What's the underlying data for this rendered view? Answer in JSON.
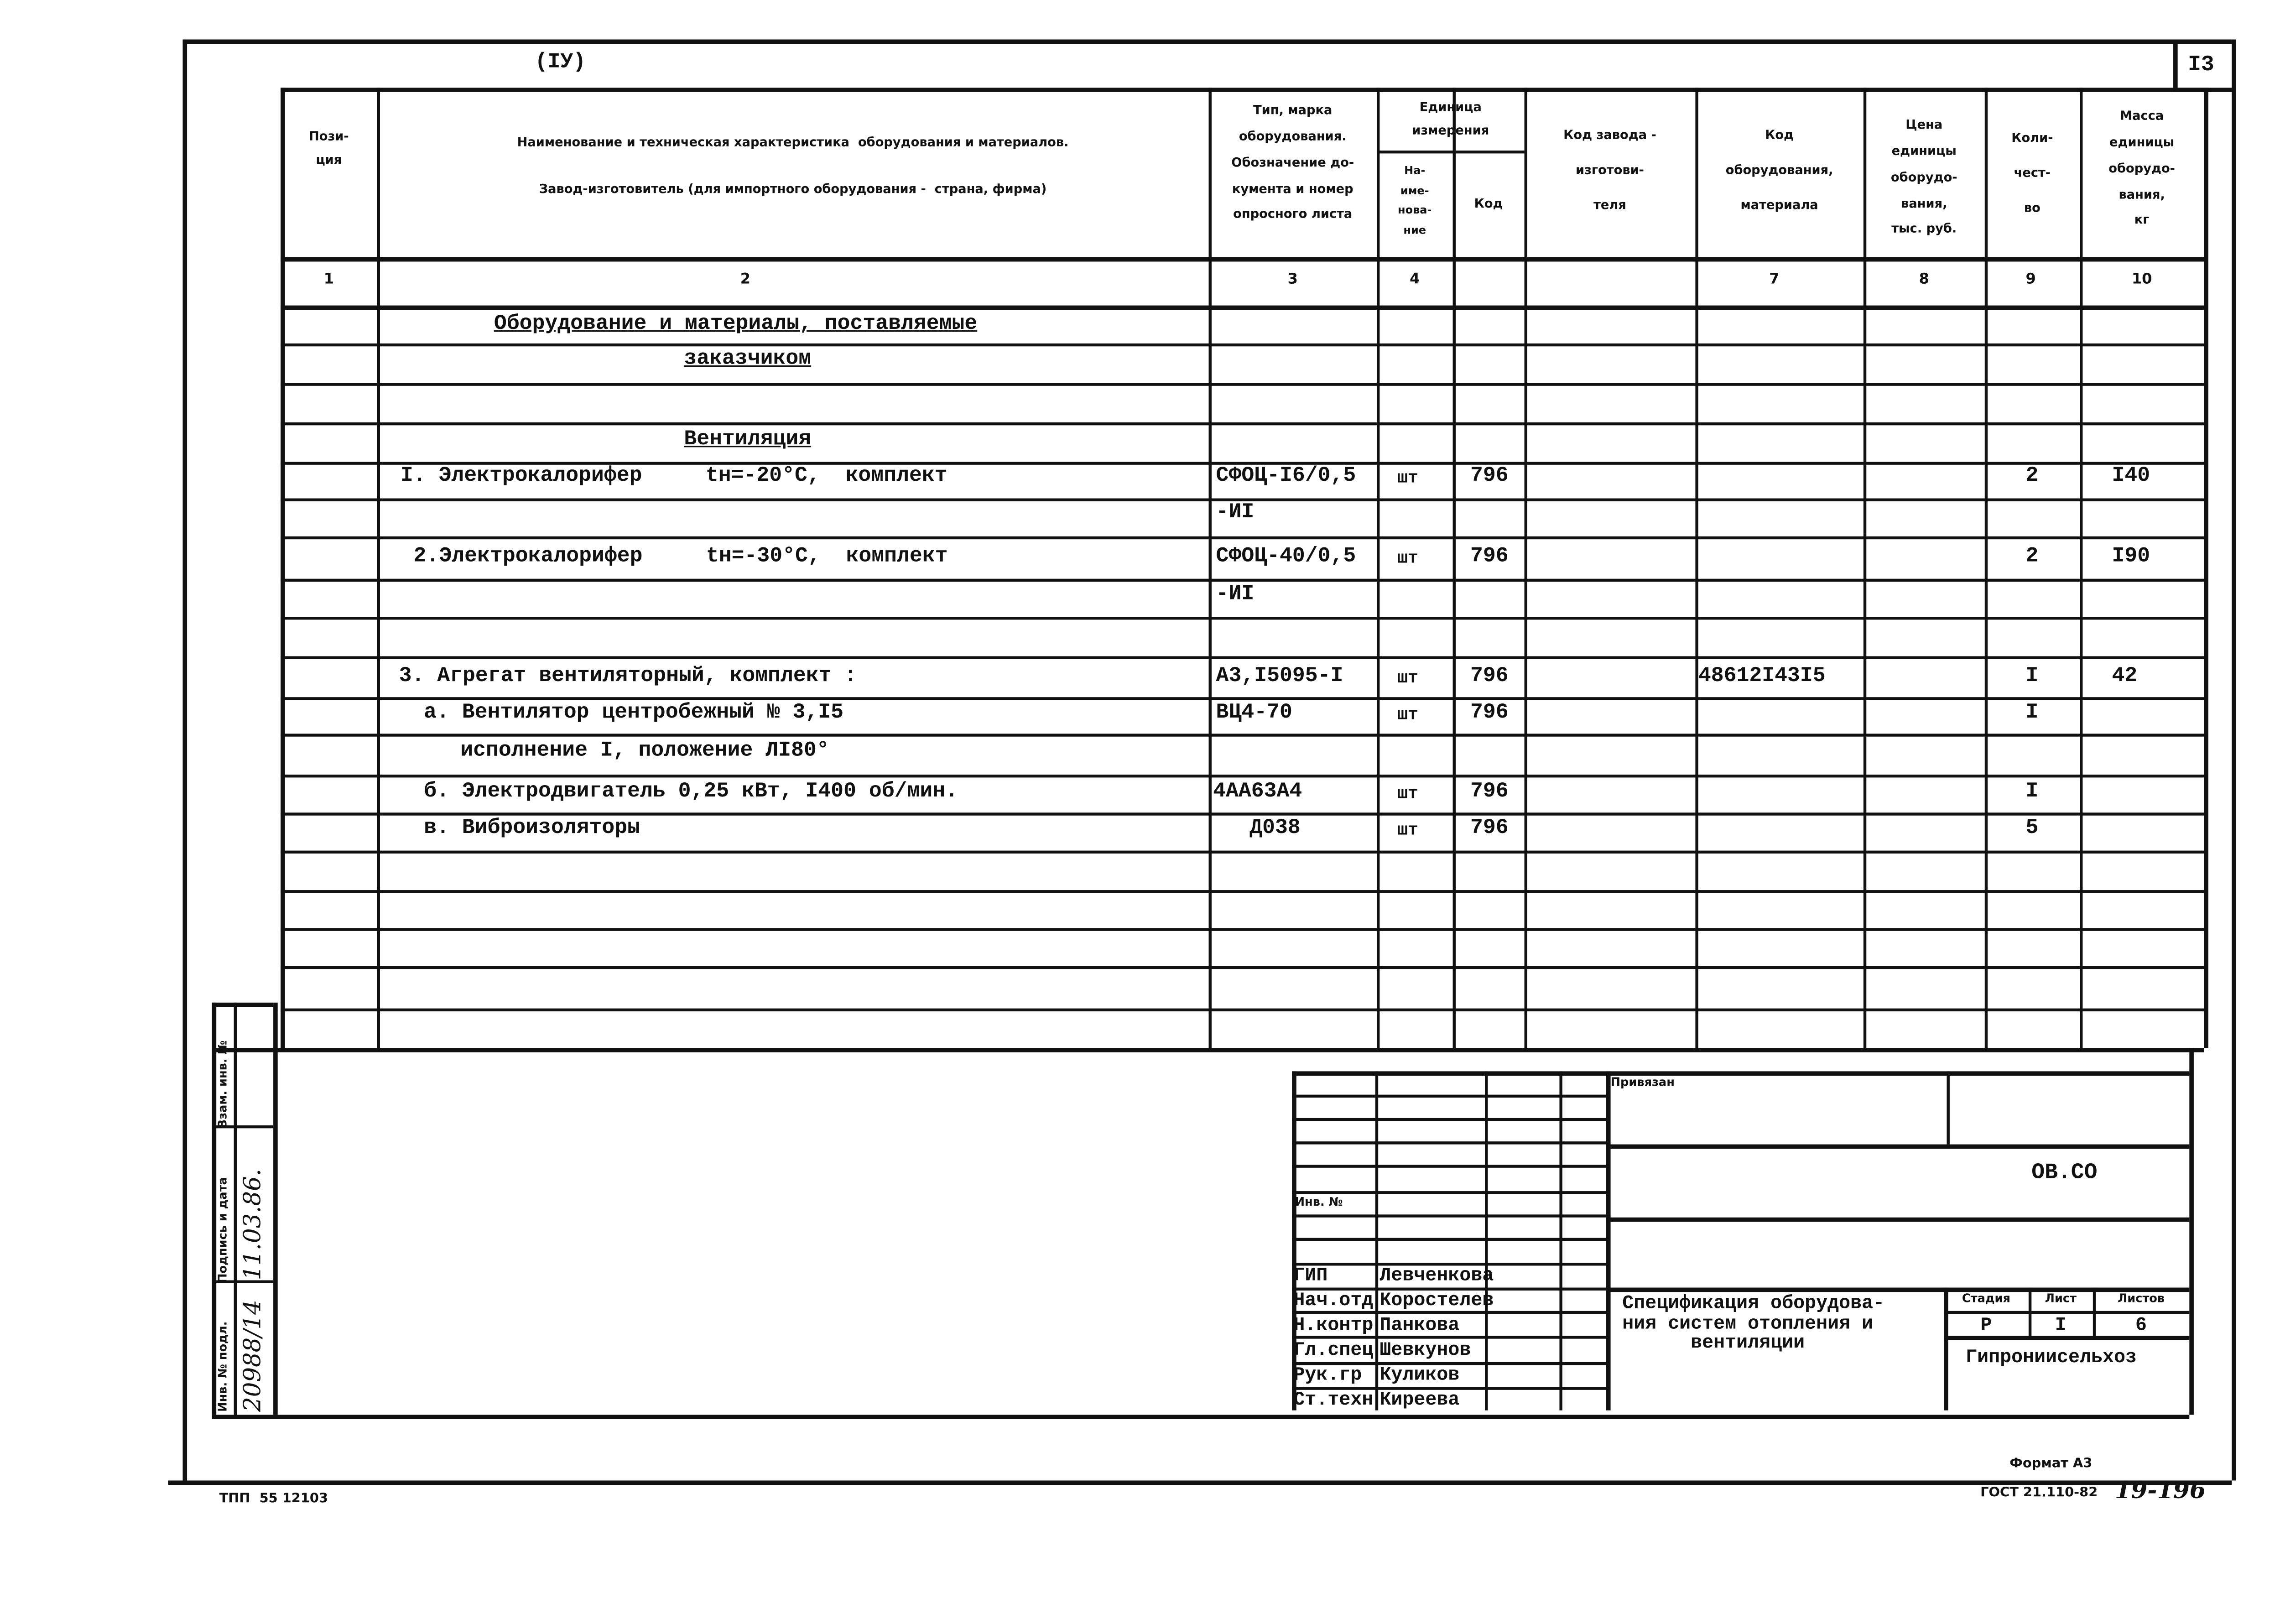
{
  "header": {
    "corner_label": "(IУ)",
    "sheet_number": "I3"
  },
  "columns": {
    "position": "Пози-\nция",
    "name": "Наименование и техническая характеристика  оборудования и материалов.\n\nЗавод-изготовитель (для импортного оборудования -  страна, фирма)",
    "type": "Тип, марка\nоборудования.\nОбозначение до-\nкумента и номер\nопросного листа",
    "unit": "Единица\nизмерения",
    "unit_name": "На-\nиме-\nнова-\nние",
    "unit_code": "Код",
    "manufacturer_code": "Код завода -\nизготови-\nтеля",
    "equipment_code": "Код\nоборудования,\nматериала",
    "price": "Цена\nединицы\nоборудо-\nвания,\nтыс. руб.",
    "qty": "Коли-\nчест-\nво",
    "mass": "Масса\nединицы\nоборудо-\nвания,\nкг"
  },
  "column_numbers": [
    "1",
    "2",
    "3",
    "4",
    "7",
    "8",
    "9",
    "10"
  ],
  "sections": {
    "supplied_line1": "Оборудование и материалы, поставляемые",
    "supplied_line2": "заказчиком",
    "ventilation": "Вентиляция"
  },
  "rows": [
    {
      "name": "I. Электрокалорифер     tн=-20°С,  комплект",
      "type": "СФОЦ-I6/0,5",
      "unit": "шт",
      "code": "796",
      "qty": "2",
      "mass": "I40"
    },
    {
      "name": "",
      "type": "-ИI"
    },
    {
      "name": "2.Электрокалорифер     tн=-30°С,  комплект",
      "type": "СФОЦ-40/0,5",
      "unit": "шт",
      "code": "796",
      "qty": "2",
      "mass": "I90"
    },
    {
      "name": "",
      "type": "-ИI"
    },
    {
      "name": "3. Агрегат вентиляторный, комплект :",
      "type": "А3,I5095-I",
      "unit": "шт",
      "code": "796",
      "equipment_code": "48612I43I5",
      "qty": "I",
      "mass": "42"
    },
    {
      "name": "а. Вентилятор центробежный № 3,I5",
      "type": "ВЦ4-70",
      "unit": "шт",
      "code": "796",
      "qty": "I"
    },
    {
      "name": "исполнение I, положение ЛI80°"
    },
    {
      "name": "б. Электродвигатель 0,25 кВт, I400 об/мин.",
      "type": "4АА63А4",
      "unit": "шт",
      "code": "796",
      "qty": "I"
    },
    {
      "name": "в. Виброизоляторы",
      "type": "Д038",
      "unit": "шт",
      "code": "796",
      "qty": "5"
    }
  ],
  "side_stamp": {
    "inv_original": "Инв. № подл.",
    "signature_date": "Подпись и дата",
    "replaced_inv": "Взам. инв. №",
    "inv_original_value": "20988/14",
    "signature_date_value": "11.03.86."
  },
  "title_block": {
    "attached": "Привязан",
    "inv_no": "Инв. №",
    "code": "ОВ.СО",
    "title": "Спецификация оборудова-\nния систем отопления и\n      вентиляции",
    "stage_label": "Стадия",
    "sheet_label": "Лист",
    "sheets_label": "Листов",
    "stage": "Р",
    "sheet": "I",
    "sheets": "6",
    "organization": "Гипрониисельхоз",
    "staff": [
      {
        "role": "ГИП",
        "name": "Левченкова"
      },
      {
        "role": "Нач.отд",
        "name": "Коростелев"
      },
      {
        "role": "Н.контр",
        "name": "Панкова"
      },
      {
        "role": "Гл.спец",
        "name": "Шевкунов"
      },
      {
        "role": "Рук.гр",
        "name": "Куликов"
      },
      {
        "role": "Ст.техн",
        "name": "Киреева"
      }
    ]
  },
  "footer": {
    "format": "Формат А3",
    "standard": "ГОСТ 21.110-82",
    "handwritten_number": "19-196",
    "project_code": "ТПП  55 12103"
  }
}
